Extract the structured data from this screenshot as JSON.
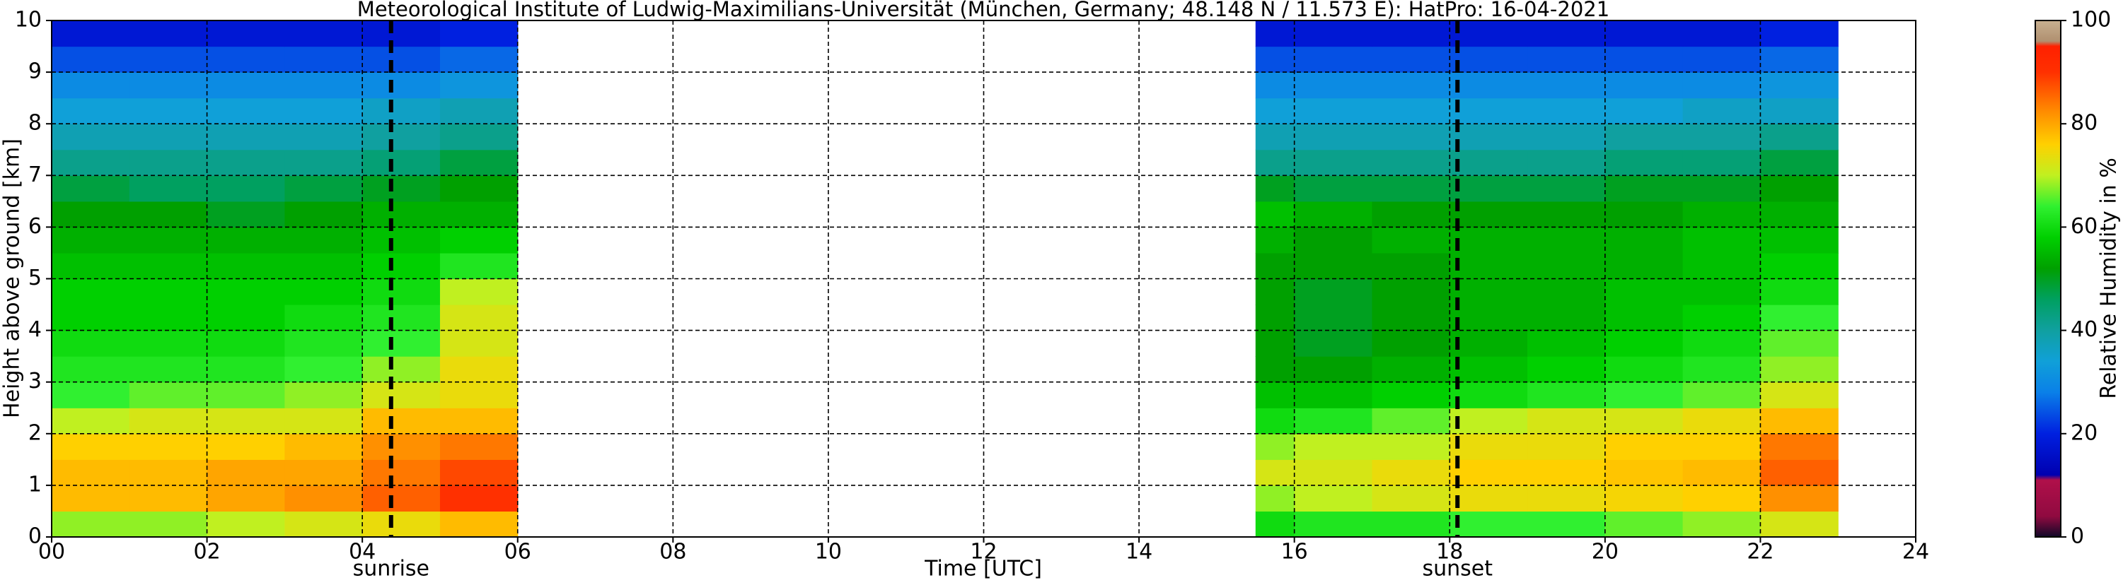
{
  "chart_data": {
    "type": "heatmap",
    "title": "Meteorological Institute of Ludwig-Maximilians-Universität (München, Germany; 48.148 N / 11.573 E):    HatPro: 16-04-2021",
    "xlabel": "Time [UTC]",
    "ylabel": "Height above ground [km]",
    "colorbar_label": "Relative Humidity in %",
    "x_bins": [
      0,
      1,
      2,
      3,
      4,
      5,
      6,
      15.5,
      16,
      17,
      18,
      19,
      20,
      21,
      22,
      23
    ],
    "y_bins": [
      0,
      0.5,
      1,
      1.5,
      2,
      2.5,
      3,
      3.5,
      4,
      4.5,
      5,
      5.5,
      6,
      6.5,
      7,
      7.5,
      8,
      8.5,
      9,
      9.5,
      10
    ],
    "values": [
      [
        68,
        68,
        70,
        72,
        74,
        78,
        null,
        60,
        62,
        62,
        64,
        64,
        66,
        68,
        72
      ],
      [
        78,
        78,
        80,
        82,
        86,
        90,
        null,
        68,
        70,
        72,
        74,
        74,
        75,
        76,
        82
      ],
      [
        78,
        78,
        80,
        80,
        84,
        88,
        null,
        72,
        72,
        74,
        76,
        76,
        77,
        78,
        86
      ],
      [
        76,
        76,
        76,
        78,
        82,
        84,
        null,
        68,
        70,
        70,
        74,
        74,
        76,
        76,
        84
      ],
      [
        70,
        72,
        72,
        72,
        78,
        78,
        null,
        60,
        62,
        66,
        70,
        72,
        72,
        74,
        78
      ],
      [
        64,
        66,
        66,
        68,
        72,
        74,
        null,
        56,
        56,
        58,
        60,
        62,
        64,
        66,
        72
      ],
      [
        62,
        62,
        62,
        64,
        68,
        74,
        null,
        52,
        52,
        54,
        56,
        58,
        60,
        62,
        68
      ],
      [
        60,
        60,
        60,
        62,
        64,
        72,
        null,
        52,
        50,
        52,
        54,
        56,
        58,
        60,
        66
      ],
      [
        58,
        58,
        58,
        60,
        62,
        72,
        null,
        52,
        50,
        52,
        54,
        54,
        56,
        58,
        64
      ],
      [
        58,
        58,
        58,
        58,
        60,
        70,
        null,
        52,
        50,
        52,
        54,
        54,
        56,
        56,
        60
      ],
      [
        56,
        56,
        56,
        56,
        58,
        62,
        null,
        52,
        52,
        52,
        54,
        54,
        54,
        56,
        58
      ],
      [
        54,
        54,
        54,
        54,
        56,
        58,
        null,
        54,
        52,
        54,
        54,
        54,
        54,
        56,
        56
      ],
      [
        52,
        52,
        50,
        52,
        54,
        54,
        null,
        56,
        54,
        52,
        52,
        52,
        52,
        54,
        54
      ],
      [
        48,
        46,
        46,
        48,
        50,
        52,
        null,
        50,
        48,
        48,
        48,
        48,
        50,
        50,
        52
      ],
      [
        42,
        42,
        42,
        42,
        44,
        48,
        null,
        42,
        42,
        42,
        42,
        42,
        44,
        44,
        48
      ],
      [
        38,
        38,
        38,
        38,
        40,
        42,
        null,
        38,
        38,
        38,
        38,
        38,
        40,
        40,
        42
      ],
      [
        34,
        34,
        34,
        34,
        36,
        38,
        null,
        34,
        34,
        34,
        34,
        34,
        34,
        36,
        36
      ],
      [
        30,
        30,
        30,
        30,
        30,
        32,
        null,
        30,
        30,
        30,
        30,
        30,
        30,
        30,
        32
      ],
      [
        24,
        24,
        24,
        24,
        24,
        26,
        null,
        24,
        24,
        24,
        24,
        24,
        24,
        24,
        26
      ],
      [
        18,
        18,
        18,
        18,
        18,
        20,
        null,
        18,
        18,
        18,
        18,
        18,
        18,
        18,
        20
      ]
    ],
    "xlim": [
      0,
      24
    ],
    "ylim": [
      0,
      10
    ],
    "xticks": [
      {
        "value": 0,
        "label": "00"
      },
      {
        "value": 2,
        "label": "02"
      },
      {
        "value": 4,
        "label": "04"
      },
      {
        "value": 6,
        "label": "06"
      },
      {
        "value": 8,
        "label": "08"
      },
      10,
      12,
      14,
      16,
      18,
      20,
      22,
      24
    ],
    "yticks": [
      0,
      1,
      2,
      3,
      4,
      5,
      6,
      7,
      8,
      9,
      10
    ],
    "grid": true,
    "clim": [
      0,
      100
    ],
    "cticks": [
      0,
      20,
      40,
      60,
      80,
      100
    ],
    "colorscale": [
      [
        0,
        "#100828"
      ],
      [
        4,
        "#900a40"
      ],
      [
        11,
        "#b0104a"
      ],
      [
        12,
        "#0000b0"
      ],
      [
        20,
        "#0020e0"
      ],
      [
        28,
        "#0a80e8"
      ],
      [
        34,
        "#10a0d8"
      ],
      [
        40,
        "#10a0a0"
      ],
      [
        46,
        "#00a060"
      ],
      [
        52,
        "#00a000"
      ],
      [
        58,
        "#00d000"
      ],
      [
        64,
        "#30f030"
      ],
      [
        70,
        "#c0f020"
      ],
      [
        76,
        "#ffd000"
      ],
      [
        82,
        "#ff9000"
      ],
      [
        90,
        "#ff3000"
      ],
      [
        95,
        "#ff2000"
      ],
      [
        96,
        "#b09070"
      ],
      [
        100,
        "#c8b090"
      ]
    ],
    "annotations": [
      {
        "text": "sunrise",
        "x": 4.37
      },
      {
        "text": "sunset",
        "x": 18.1
      }
    ]
  }
}
